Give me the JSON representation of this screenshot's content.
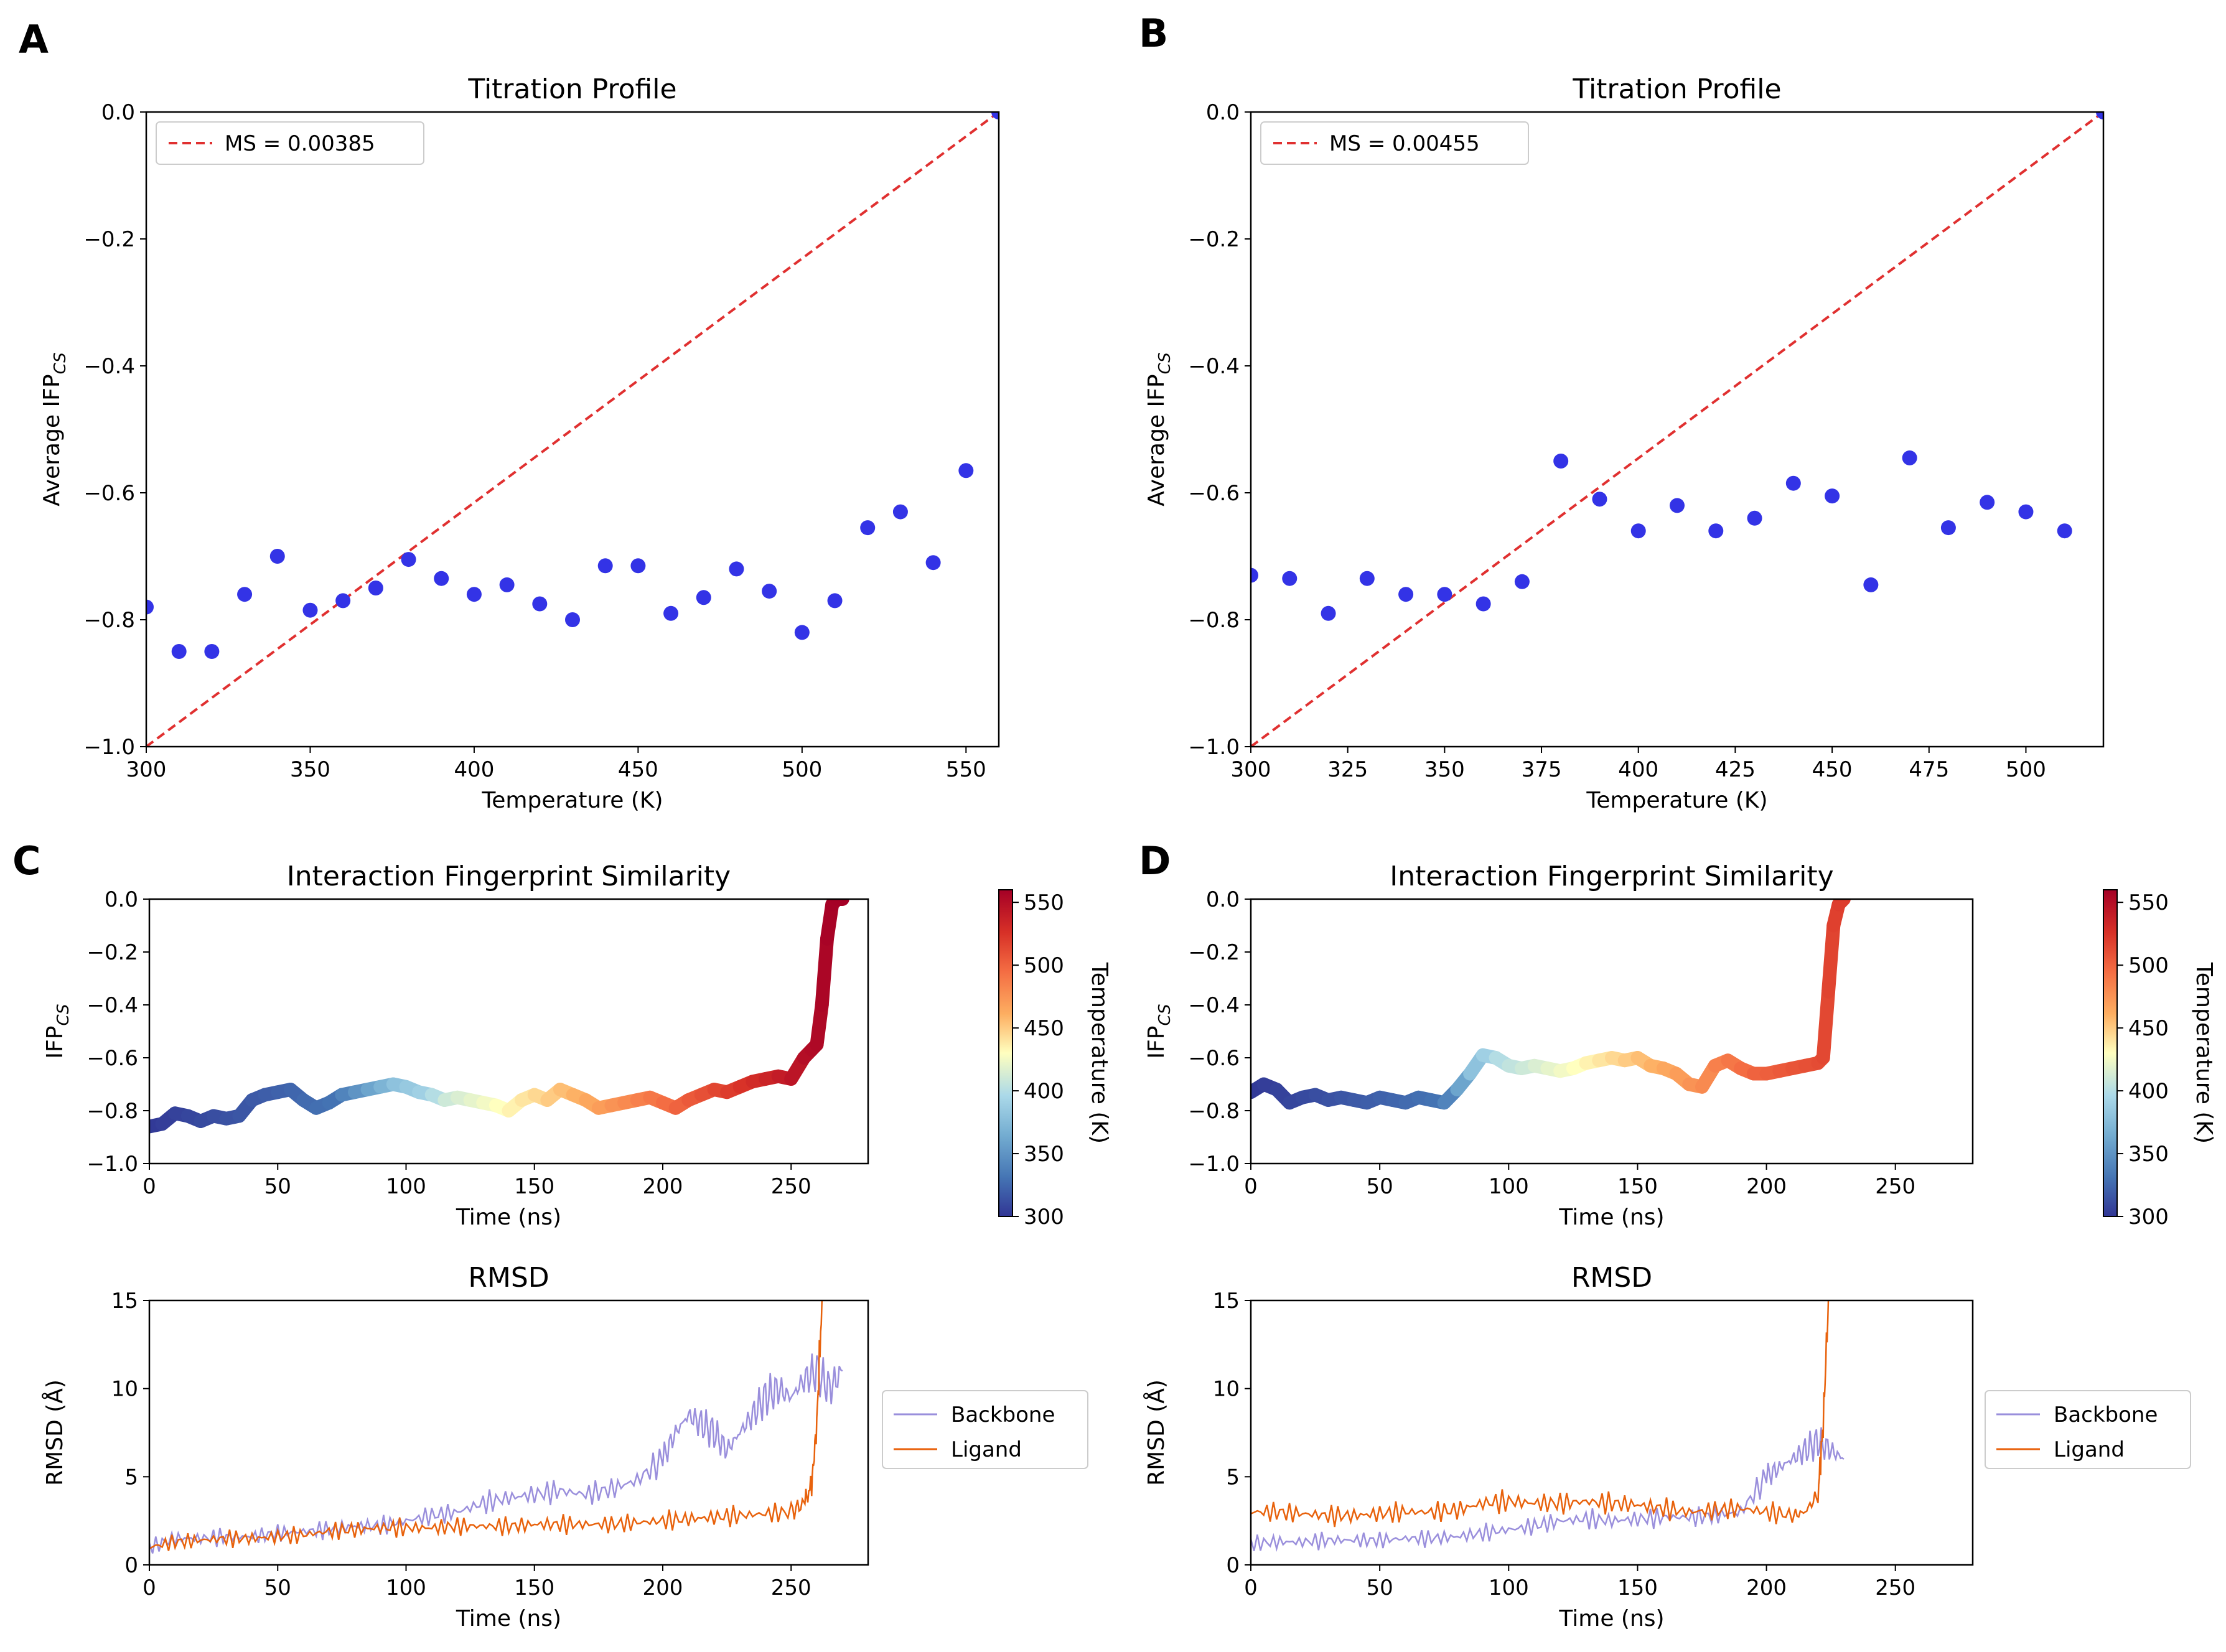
{
  "panels": [
    "A",
    "B",
    "C",
    "D"
  ],
  "chart_data": [
    {
      "id": "A",
      "type": "scatter",
      "title": "Titration Profile",
      "xlabel": "Temperature (K)",
      "ylabel": "Average IFP",
      "ylabel_sub": "CS",
      "xlim": [
        300,
        560
      ],
      "ylim": [
        -1.0,
        0.0
      ],
      "xticks": [
        300,
        350,
        400,
        450,
        500,
        550
      ],
      "yticks": [
        0.0,
        -0.2,
        -0.4,
        -0.6,
        -0.8,
        -1.0
      ],
      "x": [
        300,
        310,
        320,
        330,
        340,
        350,
        360,
        370,
        380,
        390,
        400,
        410,
        420,
        430,
        440,
        450,
        460,
        470,
        480,
        490,
        500,
        510,
        520,
        530,
        540,
        550,
        560
      ],
      "y": [
        -0.78,
        -0.85,
        -0.85,
        -0.76,
        -0.7,
        -0.785,
        -0.77,
        -0.75,
        -0.705,
        -0.735,
        -0.76,
        -0.745,
        -0.775,
        -0.8,
        -0.715,
        -0.715,
        -0.79,
        -0.765,
        -0.72,
        -0.755,
        -0.82,
        -0.77,
        -0.655,
        -0.63,
        -0.71,
        -0.565,
        0.0
      ],
      "line": {
        "x": [
          300,
          560
        ],
        "y": [
          -1.0,
          0.0
        ]
      },
      "legend": "MS = 0.00385",
      "point_color": "#3333e6",
      "line_color": "#e03030"
    },
    {
      "id": "B",
      "type": "scatter",
      "title": "Titration Profile",
      "xlabel": "Temperature (K)",
      "ylabel": "Average IFP",
      "ylabel_sub": "CS",
      "xlim": [
        300,
        520
      ],
      "ylim": [
        -1.0,
        0.0
      ],
      "xticks": [
        300,
        325,
        350,
        375,
        400,
        425,
        450,
        475,
        500
      ],
      "yticks": [
        0.0,
        -0.2,
        -0.4,
        -0.6,
        -0.8,
        -1.0
      ],
      "x": [
        300,
        310,
        320,
        330,
        340,
        350,
        360,
        370,
        380,
        390,
        400,
        410,
        420,
        430,
        440,
        450,
        460,
        470,
        480,
        490,
        500,
        510,
        520
      ],
      "y": [
        -0.73,
        -0.735,
        -0.79,
        -0.735,
        -0.76,
        -0.76,
        -0.775,
        -0.74,
        -0.55,
        -0.61,
        -0.66,
        -0.62,
        -0.66,
        -0.64,
        -0.585,
        -0.605,
        -0.745,
        -0.545,
        -0.655,
        -0.615,
        -0.63,
        -0.66,
        0.0
      ],
      "line": {
        "x": [
          300,
          520
        ],
        "y": [
          -1.0,
          0.0
        ]
      },
      "legend": "MS = 0.00455",
      "point_color": "#3333e6",
      "line_color": "#e03030"
    },
    {
      "id": "C",
      "type": "line",
      "title": "Interaction Fingerprint Similarity",
      "xlabel": "Time (ns)",
      "ylabel": "IFP",
      "ylabel_sub": "CS",
      "xlim": [
        0,
        280
      ],
      "ylim": [
        -1.0,
        0.0
      ],
      "xticks": [
        0,
        50,
        100,
        150,
        200,
        250
      ],
      "yticks": [
        0.0,
        -0.2,
        -0.4,
        -0.6,
        -0.8,
        -1.0
      ],
      "x": [
        0,
        5,
        10,
        15,
        20,
        25,
        30,
        35,
        40,
        45,
        50,
        55,
        60,
        65,
        70,
        75,
        80,
        85,
        90,
        95,
        100,
        105,
        110,
        115,
        120,
        125,
        130,
        135,
        140,
        145,
        150,
        155,
        160,
        165,
        170,
        175,
        180,
        185,
        190,
        195,
        200,
        205,
        210,
        215,
        220,
        225,
        230,
        235,
        240,
        245,
        250,
        255,
        258,
        260,
        262,
        264,
        266,
        268,
        270
      ],
      "y": [
        -0.86,
        -0.85,
        -0.81,
        -0.82,
        -0.84,
        -0.82,
        -0.83,
        -0.82,
        -0.76,
        -0.74,
        -0.73,
        -0.72,
        -0.76,
        -0.79,
        -0.77,
        -0.74,
        -0.73,
        -0.72,
        -0.71,
        -0.7,
        -0.71,
        -0.73,
        -0.74,
        -0.76,
        -0.75,
        -0.76,
        -0.77,
        -0.78,
        -0.8,
        -0.76,
        -0.74,
        -0.76,
        -0.72,
        -0.74,
        -0.76,
        -0.79,
        -0.78,
        -0.77,
        -0.76,
        -0.75,
        -0.77,
        -0.79,
        -0.76,
        -0.74,
        -0.72,
        -0.73,
        -0.71,
        -0.69,
        -0.68,
        -0.67,
        -0.68,
        -0.6,
        -0.57,
        -0.55,
        -0.4,
        -0.15,
        -0.02,
        0.0,
        0.0
      ],
      "temperature_K": [
        300,
        302,
        304,
        306,
        308,
        310,
        312,
        314,
        316,
        318,
        320,
        322,
        324,
        326,
        328,
        330,
        340,
        350,
        360,
        370,
        380,
        385,
        390,
        400,
        410,
        415,
        420,
        425,
        430,
        435,
        440,
        445,
        450,
        455,
        460,
        465,
        470,
        475,
        480,
        485,
        490,
        495,
        500,
        505,
        510,
        515,
        520,
        525,
        530,
        535,
        540,
        545,
        550,
        552,
        554,
        556,
        558,
        559,
        560
      ],
      "colorbar": {
        "label": "Temperature (K)",
        "range": [
          300,
          560
        ],
        "ticks": [
          300,
          350,
          400,
          450,
          500,
          550
        ]
      }
    },
    {
      "id": "D",
      "type": "line",
      "title": "Interaction Fingerprint Similarity",
      "xlabel": "Time (ns)",
      "ylabel": "IFP",
      "ylabel_sub": "CS",
      "xlim": [
        0,
        280
      ],
      "ylim": [
        -1.0,
        0.0
      ],
      "xticks": [
        0,
        50,
        100,
        150,
        200,
        250
      ],
      "yticks": [
        0.0,
        -0.2,
        -0.4,
        -0.6,
        -0.8,
        -1.0
      ],
      "x": [
        0,
        5,
        10,
        15,
        20,
        25,
        30,
        35,
        40,
        45,
        50,
        55,
        60,
        65,
        70,
        75,
        80,
        85,
        90,
        95,
        100,
        105,
        110,
        115,
        120,
        125,
        130,
        135,
        140,
        145,
        150,
        155,
        160,
        165,
        170,
        175,
        180,
        185,
        190,
        195,
        200,
        205,
        210,
        215,
        220,
        222,
        224,
        226,
        228,
        230
      ],
      "y": [
        -0.73,
        -0.7,
        -0.72,
        -0.77,
        -0.75,
        -0.74,
        -0.76,
        -0.75,
        -0.76,
        -0.77,
        -0.75,
        -0.76,
        -0.77,
        -0.75,
        -0.76,
        -0.77,
        -0.72,
        -0.66,
        -0.59,
        -0.6,
        -0.63,
        -0.64,
        -0.63,
        -0.64,
        -0.65,
        -0.64,
        -0.62,
        -0.61,
        -0.6,
        -0.61,
        -0.6,
        -0.63,
        -0.64,
        -0.66,
        -0.7,
        -0.71,
        -0.63,
        -0.61,
        -0.64,
        -0.66,
        -0.66,
        -0.65,
        -0.64,
        -0.63,
        -0.62,
        -0.6,
        -0.35,
        -0.1,
        -0.02,
        0.0
      ],
      "temperature_K": [
        300,
        302,
        304,
        306,
        308,
        310,
        312,
        314,
        316,
        318,
        320,
        322,
        324,
        326,
        328,
        330,
        340,
        360,
        380,
        390,
        400,
        405,
        410,
        415,
        420,
        425,
        430,
        435,
        440,
        445,
        450,
        455,
        460,
        465,
        470,
        475,
        480,
        485,
        490,
        495,
        500,
        502,
        505,
        508,
        510,
        512,
        514,
        516,
        518,
        520
      ],
      "colorbar": {
        "label": "Temperature (K)",
        "range": [
          300,
          560
        ],
        "ticks": [
          300,
          350,
          400,
          450,
          500,
          550
        ]
      }
    },
    {
      "id": "C2",
      "type": "line",
      "title": "RMSD",
      "xlabel": "Time (ns)",
      "ylabel": "RMSD (Å)",
      "xlim": [
        0,
        280
      ],
      "ylim": [
        0,
        15
      ],
      "xticks": [
        0,
        50,
        100,
        150,
        200,
        250
      ],
      "yticks": [
        0,
        5,
        10,
        15
      ],
      "series": [
        {
          "name": "Backbone",
          "color": "#9a8fdc",
          "x": [
            0,
            10,
            20,
            30,
            40,
            50,
            60,
            70,
            80,
            90,
            100,
            110,
            120,
            130,
            140,
            150,
            160,
            170,
            180,
            190,
            200,
            205,
            210,
            215,
            220,
            225,
            230,
            235,
            240,
            245,
            250,
            255,
            260,
            265,
            270
          ],
          "y": [
            1.0,
            1.5,
            1.5,
            1.6,
            1.6,
            1.8,
            1.9,
            2.0,
            2.2,
            2.2,
            2.5,
            2.8,
            3.0,
            3.5,
            3.8,
            4.0,
            4.2,
            4.0,
            4.3,
            4.8,
            6.0,
            7.5,
            8.5,
            8.0,
            7.5,
            6.5,
            7.5,
            8.5,
            9.5,
            10.0,
            9.5,
            10.5,
            11.0,
            10.0,
            11.0
          ]
        },
        {
          "name": "Ligand",
          "color": "#e8620c",
          "x": [
            0,
            10,
            20,
            30,
            40,
            50,
            60,
            70,
            80,
            90,
            100,
            110,
            120,
            130,
            140,
            150,
            160,
            170,
            180,
            190,
            200,
            210,
            220,
            230,
            240,
            250,
            255,
            258,
            260,
            262
          ],
          "y": [
            1.0,
            1.3,
            1.4,
            1.5,
            1.5,
            1.6,
            1.7,
            1.9,
            2.0,
            2.1,
            2.1,
            2.1,
            2.2,
            2.2,
            2.2,
            2.3,
            2.3,
            2.3,
            2.3,
            2.4,
            2.5,
            2.6,
            2.7,
            2.8,
            2.9,
            3.0,
            3.5,
            4.5,
            8.0,
            15.0
          ]
        }
      ]
    },
    {
      "id": "D2",
      "type": "line",
      "title": "RMSD",
      "xlabel": "Time (ns)",
      "ylabel": "RMSD (Å)",
      "xlim": [
        0,
        280
      ],
      "ylim": [
        0,
        15
      ],
      "xticks": [
        0,
        50,
        100,
        150,
        200,
        250
      ],
      "yticks": [
        0,
        5,
        10,
        15
      ],
      "series": [
        {
          "name": "Backbone",
          "color": "#9a8fdc",
          "x": [
            0,
            10,
            20,
            30,
            40,
            50,
            60,
            70,
            80,
            90,
            100,
            110,
            120,
            130,
            140,
            150,
            160,
            170,
            180,
            190,
            200,
            205,
            210,
            215,
            220,
            225,
            230
          ],
          "y": [
            1.2,
            1.3,
            1.3,
            1.4,
            1.4,
            1.4,
            1.5,
            1.5,
            1.6,
            1.8,
            2.0,
            2.2,
            2.5,
            2.6,
            2.5,
            2.6,
            2.7,
            2.7,
            2.8,
            3.0,
            5.0,
            5.5,
            6.0,
            6.5,
            7.0,
            6.5,
            6.0
          ]
        },
        {
          "name": "Ligand",
          "color": "#e8620c",
          "x": [
            0,
            10,
            20,
            30,
            40,
            50,
            60,
            70,
            80,
            90,
            100,
            110,
            120,
            130,
            140,
            150,
            160,
            170,
            180,
            190,
            200,
            210,
            215,
            220,
            222,
            224
          ],
          "y": [
            3.0,
            3.0,
            2.9,
            2.8,
            2.8,
            2.9,
            3.0,
            3.0,
            3.1,
            3.5,
            3.6,
            3.5,
            3.5,
            3.6,
            3.5,
            3.4,
            3.2,
            3.0,
            3.1,
            3.2,
            3.0,
            2.8,
            3.0,
            4.0,
            8.0,
            15.0
          ]
        }
      ]
    }
  ]
}
